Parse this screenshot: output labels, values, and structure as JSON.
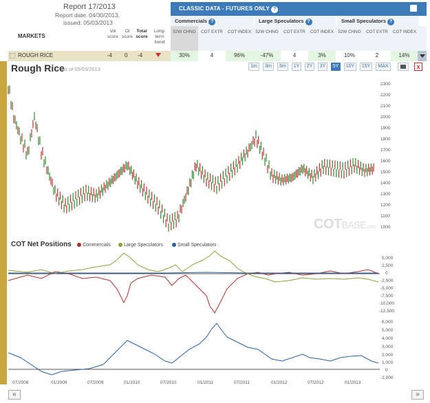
{
  "report": {
    "title": "Report 17/2013",
    "date": "Report date: 04/30/2013,",
    "issued": "issued: 05/03/2013"
  },
  "table": {
    "markets_header": "MARKETS",
    "vol_score": "Vol score",
    "oi_score": "OI score",
    "total_score": "Total score",
    "long_term": "Long-term trend",
    "classic_title": "CLASSIC DATA - FUTURES ONLY",
    "groups": [
      "Commercials",
      "Large Speculators",
      "Small Speculators"
    ],
    "sub_headers": [
      "52W CHNG",
      "COT EXTR",
      "COT INDEX"
    ],
    "row": {
      "name": "ROUGH RICE",
      "vol": "-4",
      "oi": "0",
      "total": "-4",
      "values": [
        "30%",
        "4",
        "96%",
        "-47%",
        "4",
        "3%",
        "10%",
        "2",
        "14%"
      ]
    }
  },
  "chart": {
    "title": "Rough Rice",
    "asof": "as of 05/03/2013",
    "ranges": [
      "1m",
      "3m",
      "6m",
      "1Y",
      "2Y",
      "3Y",
      "5Y",
      "10Y",
      "15Y",
      "MAX"
    ],
    "active_range": "5Y",
    "close_label": "x",
    "price_ticks": [
      "2300",
      "2200",
      "2100",
      "2000",
      "1900",
      "1800",
      "1700",
      "1600",
      "1500",
      "1400",
      "1300",
      "1200",
      "1100",
      "1000"
    ],
    "watermark_cot": "COT",
    "watermark_base": "BASE",
    "watermark_com": ".com"
  },
  "cot": {
    "title": "COT Net Positions",
    "legend": [
      "Commercials",
      "Large Speculators",
      "Small Speculators"
    ],
    "colors": {
      "commercials": "#b03030",
      "large": "#8aa03a",
      "small": "#2c5f9e"
    },
    "upper_ticks": [
      "5,000",
      "2,500",
      "0",
      "-2,500",
      "-5,000",
      "-7,500",
      "-10,000",
      "-12,500"
    ],
    "lower_ticks": [
      "6,000",
      "5,000",
      "4,000",
      "3,000",
      "2,000",
      "1,000",
      "0",
      "-1,000"
    ],
    "x_ticks": [
      "07/2008",
      "01/2009",
      "07/2009",
      "01/2010",
      "07/2010",
      "01/2011",
      "07/2011",
      "01/2012",
      "07/2012",
      "01/2013"
    ]
  },
  "nav": {
    "prev": "«",
    "next": "»"
  }
}
